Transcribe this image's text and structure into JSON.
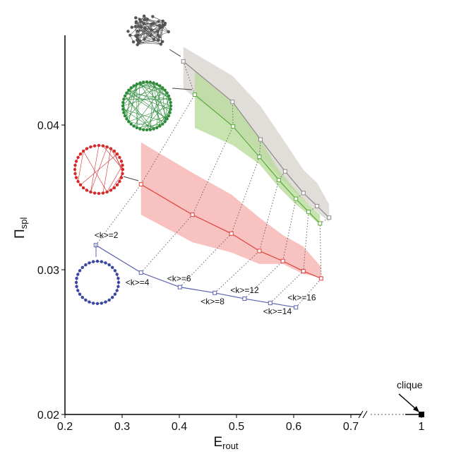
{
  "chart_data": {
    "type": "line",
    "x_label": {
      "text": "E",
      "sub": "rout"
    },
    "y_label": {
      "text": "Π",
      "sub": "spl"
    },
    "xlim": [
      0.2,
      1
    ],
    "xticks": [
      0.2,
      0.3,
      0.4,
      0.5,
      0.6,
      0.7,
      1
    ],
    "ylim": [
      0.02,
      0.0462
    ],
    "yticks": [
      0.02,
      0.03,
      0.04
    ],
    "series": [
      {
        "color": "#8a8a8a",
        "band_color": "#d9d4cf",
        "x": [
          0.407,
          0.493,
          0.542,
          0.585,
          0.617,
          0.641,
          0.662
        ],
        "values": [
          0.0444,
          0.0416,
          0.039,
          0.0368,
          0.0353,
          0.0344,
          0.0336
        ],
        "upper": [
          0.0454,
          0.0434,
          0.0413,
          0.0388,
          0.0369,
          0.036,
          0.0345
        ],
        "lower": [
          0.0425,
          0.04,
          0.0379,
          0.036,
          0.0348,
          0.034,
          0.0333
        ]
      },
      {
        "color": "#5aa83a",
        "band_color": "#b9dc9c",
        "x": [
          0.427,
          0.494,
          0.54,
          0.574,
          0.604,
          0.626,
          0.646
        ],
        "values": [
          0.0421,
          0.0399,
          0.0378,
          0.0362,
          0.0349,
          0.034,
          0.0332
        ],
        "upper": [
          0.0437,
          0.0415,
          0.0391,
          0.0369,
          0.0355,
          0.0345,
          0.0338
        ],
        "lower": [
          0.0398,
          0.0386,
          0.0373,
          0.0357,
          0.0345,
          0.0338,
          0.0331
        ]
      },
      {
        "color": "#e0403c",
        "band_color": "#f6b3b0",
        "x": [
          0.333,
          0.423,
          0.491,
          0.54,
          0.581,
          0.617,
          0.648
        ],
        "values": [
          0.0359,
          0.0338,
          0.0325,
          0.0313,
          0.0306,
          0.0299,
          0.0294
        ],
        "upper": [
          0.0388,
          0.0367,
          0.0352,
          0.0336,
          0.0324,
          0.0316,
          0.0302
        ],
        "lower": [
          0.0338,
          0.0319,
          0.0312,
          0.0304,
          0.0304,
          0.0297,
          0.0295
        ]
      },
      {
        "color": "#5a62b0",
        "x": [
          0.254,
          0.333,
          0.401,
          0.462,
          0.514,
          0.559,
          0.604
        ],
        "values": [
          0.0317,
          0.0298,
          0.0288,
          0.0284,
          0.028,
          0.0277,
          0.0274
        ],
        "point_labels": [
          "<k>=2",
          "<k>=4",
          "<k>=6",
          "<k>=8",
          "<k>=12",
          "<k>=14",
          "<k>=16"
        ]
      }
    ],
    "clique": {
      "x": 1,
      "y": 0.02,
      "label": "clique"
    }
  }
}
